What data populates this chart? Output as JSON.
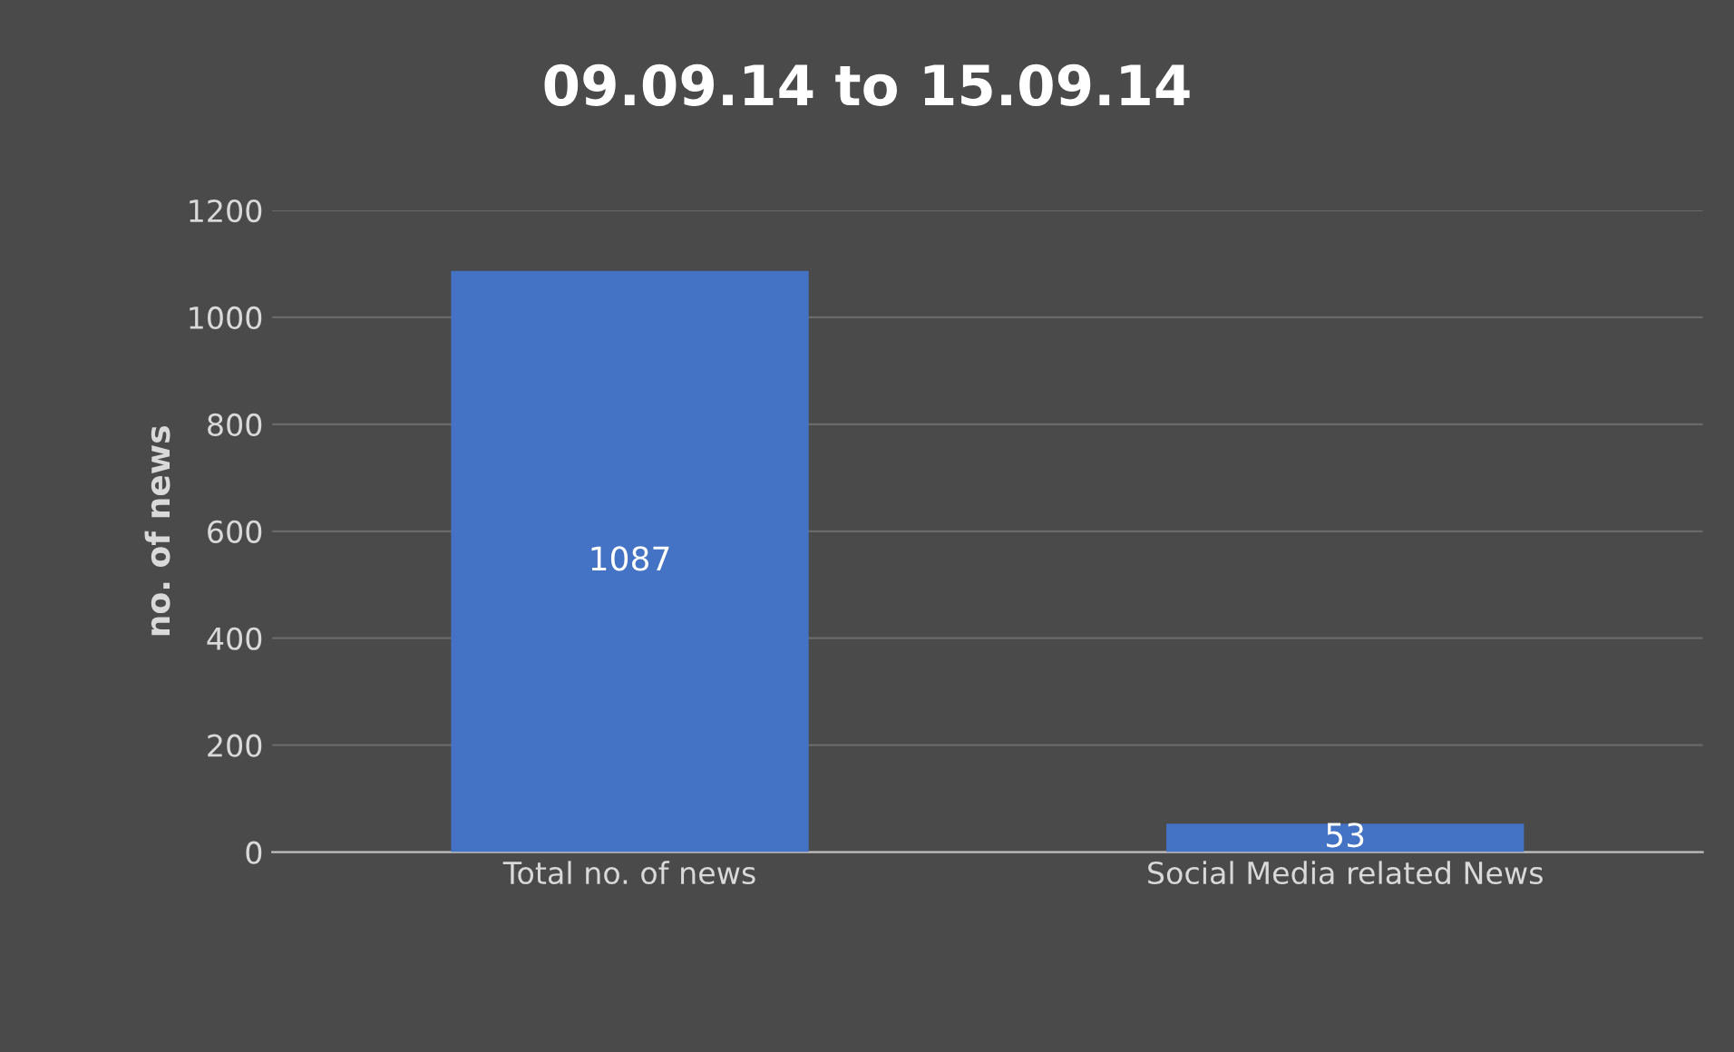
{
  "chart_data": {
    "type": "bar",
    "title": "09.09.14 to 15.09.14",
    "ylabel": "no. of news",
    "categories": [
      "Total no. of news",
      "Social Media related News"
    ],
    "values": [
      1087,
      53
    ],
    "color": "#4472c4",
    "ylim": [
      0,
      1200
    ],
    "yticks": [
      0,
      200,
      400,
      600,
      800,
      1000,
      1200
    ],
    "grid": "y",
    "data_labels": true
  }
}
